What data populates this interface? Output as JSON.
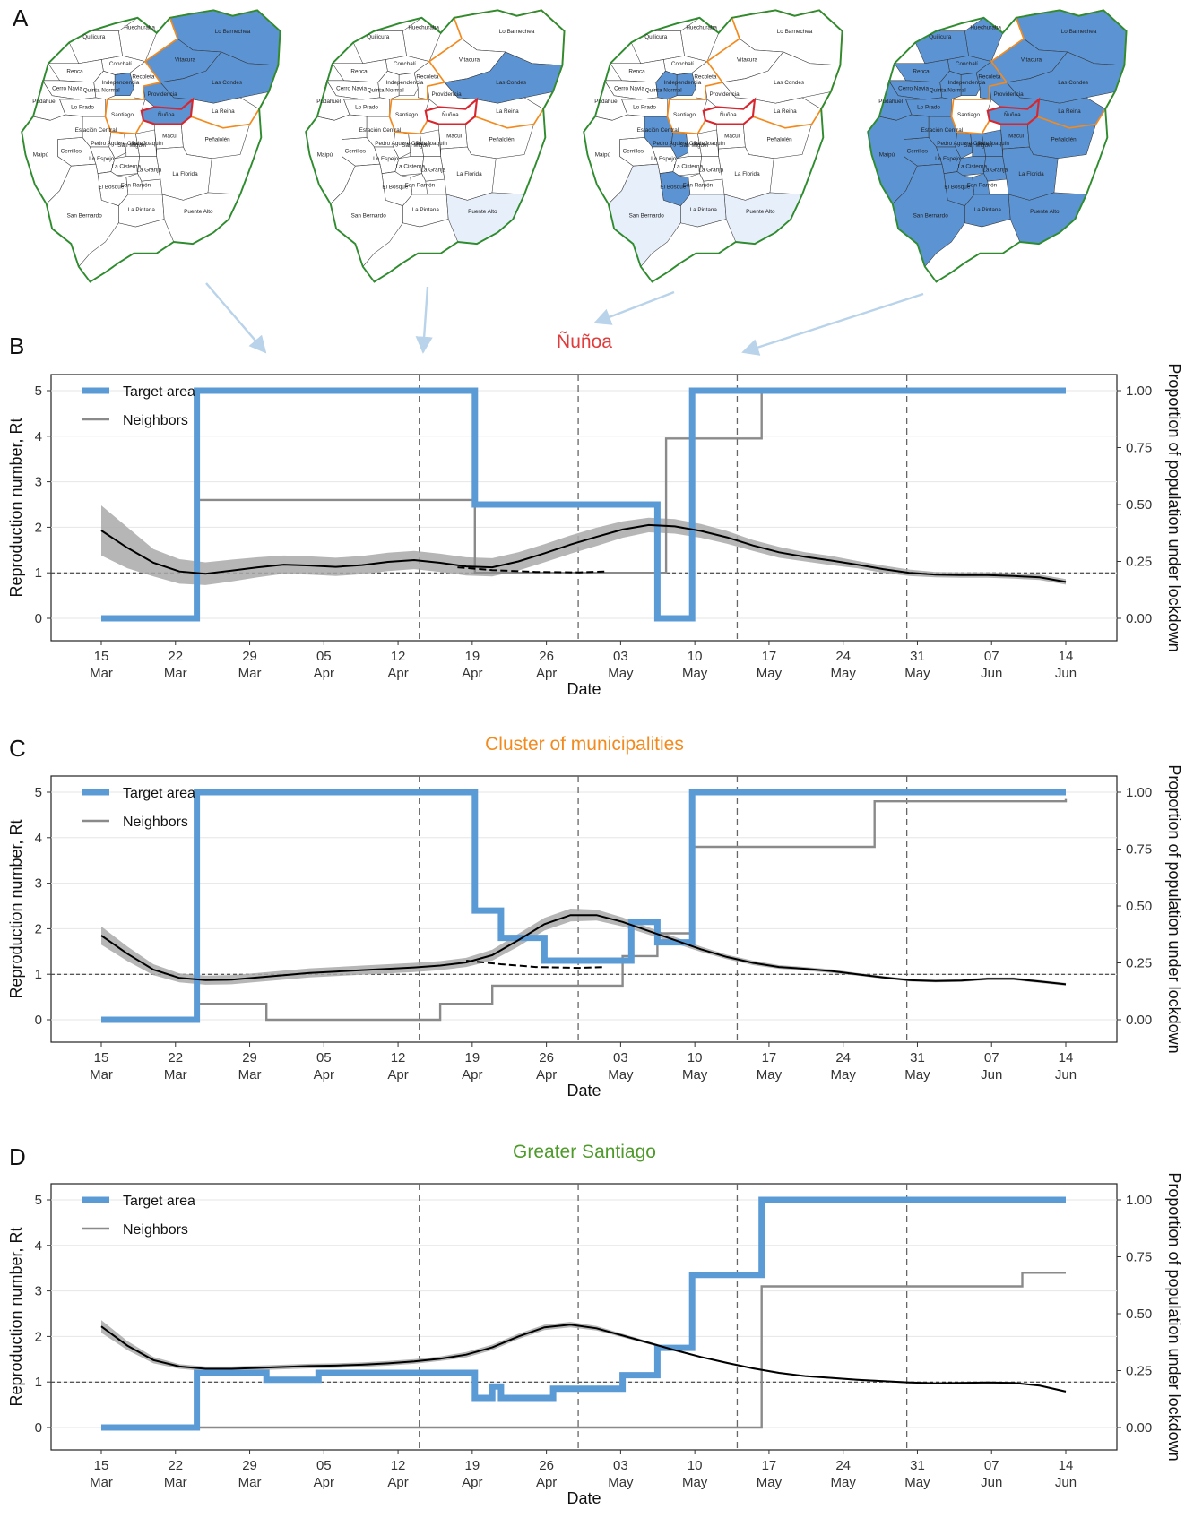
{
  "panel_letters": [
    "A",
    "B",
    "C",
    "D"
  ],
  "map_labels": [
    "Lo Barnechea",
    "Huechuraba",
    "Quilicura",
    "Conchalí",
    "Vitacura",
    "Renca",
    "Recoleta",
    "Independencia",
    "Cerro Navia",
    "Quinta Normal",
    "Providencia",
    "Las Condes",
    "Pudahuel",
    "Lo Prado",
    "Santiago",
    "Ñuñoa",
    "La Reina",
    "Estación Central",
    "Pedro Aguirre Cerda",
    "San Miguel",
    "San Joaquín",
    "Macul",
    "Peñalolén",
    "Cerrillos",
    "Lo Espejo",
    "La Cisterna",
    "La Granja",
    "San Ramón",
    "La Florida",
    "Maipú",
    "El Bosque",
    "La Pintana",
    "San Bernardo",
    "Puente Alto"
  ],
  "map_highlights": [
    [
      "Lo Barnechea",
      "Vitacura",
      "Las Condes",
      "Providencia",
      "Independencia",
      "Ñuñoa"
    ],
    [
      "Las Condes",
      "Puente Alto"
    ],
    [
      "Independencia",
      "Quinta Normal",
      "Estación Central",
      "Pedro Aguirre Cerda",
      "El Bosque",
      "San Bernardo",
      "La Pintana",
      "Puente Alto"
    ],
    [
      "all-except-Santiago"
    ]
  ],
  "colors": {
    "target": "#5b9bd5",
    "neighbors": "#8a8a8a",
    "rt_line": "#000000",
    "band": "#a9a9a9",
    "nunoa_border": "#d7262e",
    "cluster_border": "#f28a1e",
    "greater_border": "#2e8b2e",
    "lockdown_fill": "#5b93d3",
    "partial_fill": "#e7effa"
  },
  "chart_data": [
    {
      "type": "line",
      "panel": "B",
      "title": "Ñuñoa",
      "title_color": "#e03c3c",
      "xlabel": "Date",
      "ylabel": "Reproduction number, Rt",
      "y2label": "Proportion of population under lockdown",
      "ylim": [
        0,
        5
      ],
      "y2lim": [
        0,
        1
      ],
      "yticks": [
        "0",
        "1",
        "2",
        "3",
        "4",
        "5"
      ],
      "y2ticks": [
        "0.00",
        "0.25",
        "0.50",
        "0.75",
        "1.00"
      ],
      "xticks": [
        "15 Mar",
        "22 Mar",
        "29 Mar",
        "05 Apr",
        "12 Apr",
        "19 Apr",
        "26 Apr",
        "03 May",
        "10 May",
        "17 May",
        "24 May",
        "31 May",
        "07 Jun",
        "14 Jun"
      ],
      "legend": [
        "Target area",
        "Neighbors"
      ],
      "legend_position": "top-left",
      "vlines": [
        30,
        45,
        60,
        76
      ],
      "x": [
        0,
        3,
        6,
        9,
        12,
        15,
        18,
        21,
        24,
        27,
        30,
        33,
        36,
        39,
        42,
        45,
        48,
        51,
        54,
        57,
        60,
        63,
        66,
        69,
        72,
        75,
        78,
        81,
        84,
        87,
        90,
        93,
        96,
        99,
        102,
        105,
        108,
        111
      ],
      "series": [
        {
          "name": "Target area",
          "kind": "step",
          "x": [
            0,
            11,
            30,
            43,
            45,
            60,
            64,
            68,
            111
          ],
          "y": [
            0,
            1,
            1,
            0.5,
            0.5,
            0.5,
            0,
            1,
            1
          ]
        },
        {
          "name": "Neighbors",
          "kind": "step",
          "x": [
            0,
            11,
            43,
            60,
            65,
            76,
            111
          ],
          "y": [
            0,
            0.52,
            0.2,
            0.2,
            0.79,
            1,
            1
          ]
        },
        {
          "kind": "rt",
          "y": [
            1.93,
            1.55,
            1.22,
            1.03,
            0.98,
            1.05,
            1.12,
            1.18,
            1.16,
            1.13,
            1.17,
            1.24,
            1.28,
            1.22,
            1.14,
            1.12,
            1.25,
            1.43,
            1.62,
            1.79,
            1.95,
            2.05,
            2.02,
            1.92,
            1.78,
            1.6,
            1.45,
            1.35,
            1.27,
            1.18,
            1.08,
            1.0,
            0.96,
            0.95,
            0.95,
            0.93,
            0.9,
            0.8
          ],
          "band": [
            0.55,
            0.45,
            0.3,
            0.27,
            0.25,
            0.24,
            0.22,
            0.2,
            0.2,
            0.2,
            0.2,
            0.2,
            0.2,
            0.2,
            0.2,
            0.2,
            0.2,
            0.2,
            0.2,
            0.2,
            0.18,
            0.16,
            0.16,
            0.15,
            0.14,
            0.12,
            0.12,
            0.1,
            0.1,
            0.08,
            0.08,
            0.07,
            0.06,
            0.06,
            0.06,
            0.06,
            0.06,
            0.06
          ]
        },
        {
          "kind": "counterfactual",
          "x": [
            41,
            45,
            50,
            55,
            58
          ],
          "y": [
            1.12,
            1.06,
            1.02,
            1.01,
            1.03
          ]
        }
      ]
    },
    {
      "type": "line",
      "panel": "C",
      "title": "Cluster of municipalities",
      "title_color": "#f28a1e",
      "xlabel": "Date",
      "ylabel": "Reproduction number, Rt",
      "y2label": "Proportion of population under lockdown",
      "ylim": [
        0,
        5
      ],
      "y2lim": [
        0,
        1
      ],
      "yticks": [
        "0",
        "1",
        "2",
        "3",
        "4",
        "5"
      ],
      "y2ticks": [
        "0.00",
        "0.25",
        "0.50",
        "0.75",
        "1.00"
      ],
      "xticks": [
        "15 Mar",
        "22 Mar",
        "29 Mar",
        "05 Apr",
        "12 Apr",
        "19 Apr",
        "26 Apr",
        "03 May",
        "10 May",
        "17 May",
        "24 May",
        "31 May",
        "07 Jun",
        "14 Jun"
      ],
      "legend": [
        "Target area",
        "Neighbors"
      ],
      "legend_position": "top-left",
      "vlines": [
        30,
        45,
        60,
        76
      ],
      "x": [
        0,
        3,
        6,
        9,
        12,
        15,
        18,
        21,
        24,
        27,
        30,
        33,
        36,
        39,
        42,
        45,
        48,
        51,
        54,
        57,
        60,
        63,
        66,
        69,
        72,
        75,
        78,
        81,
        84,
        87,
        90,
        93,
        96,
        99,
        102,
        105,
        108,
        111
      ],
      "series": [
        {
          "name": "Target area",
          "kind": "step",
          "x": [
            0,
            11,
            30,
            43,
            46,
            60,
            61,
            64,
            68,
            111
          ],
          "y": [
            0,
            1,
            1,
            0.48,
            0.26,
            0.26,
            0.26,
            0.43,
            0.34,
            1
          ],
          "x_exact": [
            0,
            11,
            43,
            46,
            51,
            61,
            64,
            68,
            111
          ],
          "y_exact": [
            0,
            1,
            0.48,
            0.36,
            0.26,
            0.43,
            0.34,
            1,
            1
          ]
        },
        {
          "name": "Neighbors",
          "kind": "step",
          "x": [
            0,
            11,
            19,
            39,
            45,
            60,
            64,
            68,
            89,
            111
          ],
          "y": [
            0,
            0.07,
            0,
            0.07,
            0.15,
            0.28,
            0.38,
            0.76,
            0.96,
            0.97
          ]
        },
        {
          "kind": "rt",
          "y": [
            1.85,
            1.45,
            1.1,
            0.92,
            0.87,
            0.88,
            0.93,
            0.98,
            1.03,
            1.06,
            1.09,
            1.12,
            1.15,
            1.19,
            1.26,
            1.42,
            1.75,
            2.1,
            2.3,
            2.3,
            2.15,
            1.95,
            1.75,
            1.55,
            1.38,
            1.25,
            1.16,
            1.12,
            1.07,
            1.0,
            0.93,
            0.87,
            0.85,
            0.86,
            0.9,
            0.9,
            0.84,
            0.78
          ],
          "band": [
            0.2,
            0.16,
            0.12,
            0.1,
            0.1,
            0.1,
            0.1,
            0.1,
            0.1,
            0.1,
            0.1,
            0.1,
            0.1,
            0.1,
            0.1,
            0.12,
            0.14,
            0.14,
            0.14,
            0.12,
            0.1,
            0.08,
            0.07,
            0.06,
            0.05,
            0.05,
            0.04,
            0.04,
            0.04,
            0.03,
            0.03,
            0.03,
            0.03,
            0.03,
            0.03,
            0.03,
            0.03,
            0.03
          ]
        },
        {
          "kind": "counterfactual",
          "x": [
            42,
            46,
            50,
            55,
            58
          ],
          "y": [
            1.3,
            1.22,
            1.16,
            1.14,
            1.16
          ]
        }
      ]
    },
    {
      "type": "line",
      "panel": "D",
      "title": "Greater Santiago",
      "title_color": "#4e9a2a",
      "xlabel": "Date",
      "ylabel": "Reproduction number, Rt",
      "y2label": "Proportion of population under lockdown",
      "ylim": [
        0,
        5
      ],
      "y2lim": [
        0,
        1
      ],
      "yticks": [
        "0",
        "1",
        "2",
        "3",
        "4",
        "5"
      ],
      "y2ticks": [
        "0.00",
        "0.25",
        "0.50",
        "0.75",
        "1.00"
      ],
      "xticks": [
        "15 Mar",
        "22 Mar",
        "29 Mar",
        "05 Apr",
        "12 Apr",
        "19 Apr",
        "26 Apr",
        "03 May",
        "10 May",
        "17 May",
        "24 May",
        "31 May",
        "07 Jun",
        "14 Jun"
      ],
      "legend": [
        "Target area",
        "Neighbors"
      ],
      "legend_position": "top-left",
      "vlines": [
        30,
        45,
        60,
        76
      ],
      "x": [
        0,
        3,
        6,
        9,
        12,
        15,
        18,
        21,
        24,
        27,
        30,
        33,
        36,
        39,
        42,
        45,
        48,
        51,
        54,
        57,
        60,
        63,
        66,
        69,
        72,
        75,
        78,
        81,
        84,
        87,
        90,
        93,
        96,
        99,
        102,
        105,
        108,
        111
      ],
      "series": [
        {
          "name": "Target area",
          "kind": "step",
          "x": [
            0,
            11,
            19,
            25,
            30,
            43,
            46,
            47,
            52,
            60,
            64,
            68,
            76,
            111
          ],
          "y": [
            0,
            0.24,
            0.21,
            0.24,
            0.24,
            0.13,
            0.18,
            0.13,
            0.17,
            0.23,
            0.35,
            0.67,
            1,
            1
          ],
          "x_exact": [
            0,
            11,
            19,
            25,
            30,
            43,
            45,
            46,
            52,
            60,
            64,
            68,
            76,
            111
          ],
          "y_exact": [
            0,
            0.24,
            0.21,
            0.24,
            0.24,
            0.13,
            0.18,
            0.13,
            0.17,
            0.23,
            0.35,
            0.67,
            1,
            1
          ]
        },
        {
          "name": "Neighbors",
          "kind": "step",
          "x": [
            0,
            76,
            106,
            111
          ],
          "y": [
            0,
            0.62,
            0.68,
            0.68
          ]
        },
        {
          "kind": "rt",
          "y": [
            2.22,
            1.8,
            1.48,
            1.34,
            1.29,
            1.29,
            1.31,
            1.33,
            1.35,
            1.36,
            1.38,
            1.41,
            1.45,
            1.51,
            1.6,
            1.76,
            2.0,
            2.2,
            2.26,
            2.18,
            2.02,
            1.86,
            1.7,
            1.55,
            1.42,
            1.3,
            1.2,
            1.13,
            1.09,
            1.05,
            1.02,
            0.99,
            0.97,
            0.98,
            0.99,
            0.98,
            0.92,
            0.79
          ],
          "band": [
            0.14,
            0.1,
            0.07,
            0.05,
            0.05,
            0.05,
            0.05,
            0.05,
            0.05,
            0.05,
            0.05,
            0.05,
            0.05,
            0.05,
            0.06,
            0.06,
            0.06,
            0.06,
            0.06,
            0.05,
            0.04,
            0.03,
            0.02,
            0.02,
            0.02,
            0.02,
            0.02,
            0.02,
            0.02,
            0.02,
            0.02,
            0.02,
            0.02,
            0.02,
            0.02,
            0.02,
            0.02,
            0.02
          ]
        }
      ]
    }
  ]
}
